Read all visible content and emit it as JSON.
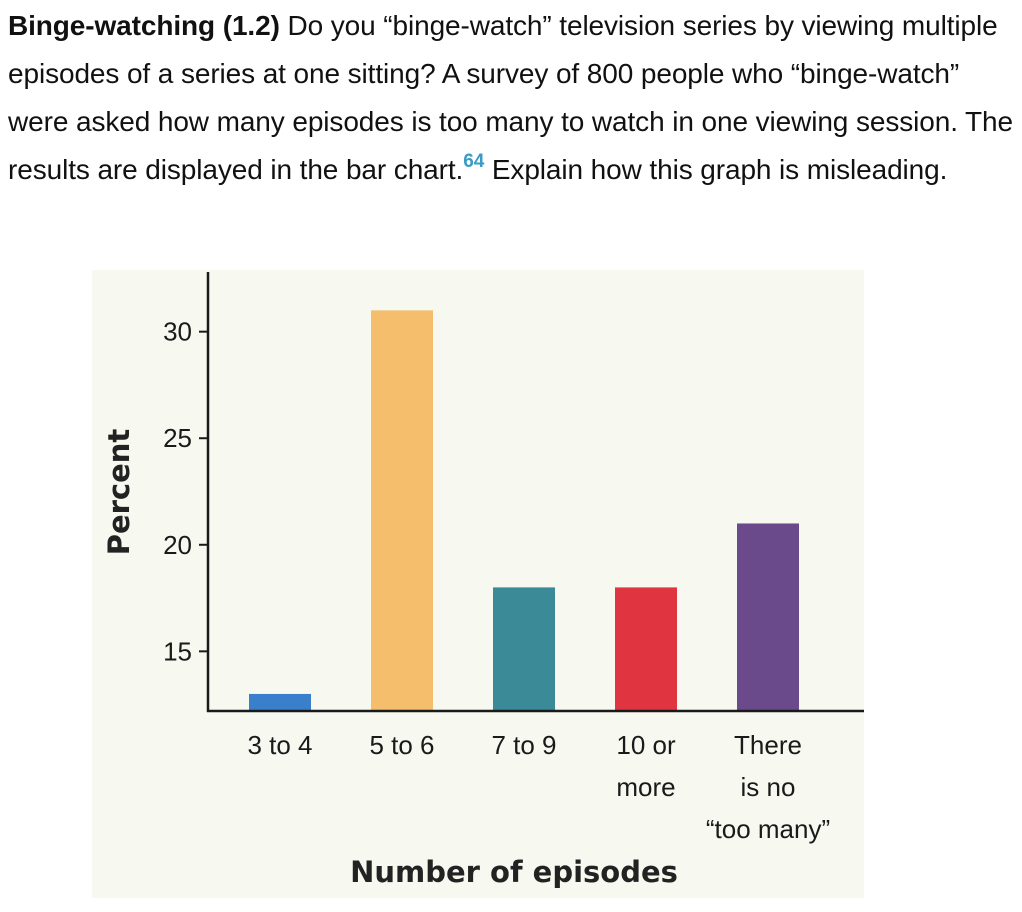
{
  "exercise": {
    "title": "Binge-watching (1.2)",
    "text_before_ref": "Do you “binge-watch” television series by viewing multiple episodes of a series at one sitting? A survey of 800 people who “binge-watch” were asked how many episodes is too many to watch in one viewing session. The results are displayed in the bar chart.",
    "ref": "64",
    "text_after_ref": "Explain how this graph is misleading."
  },
  "chart_data": {
    "type": "bar",
    "categories": [
      [
        "3 to 4"
      ],
      [
        "5 to 6"
      ],
      [
        "7 to 9"
      ],
      [
        "10 or",
        "more"
      ],
      [
        "There",
        "is no",
        "“too many”"
      ]
    ],
    "values": [
      13,
      31,
      18,
      18,
      21
    ],
    "colors": [
      "#3a7fcc",
      "#f4be6c",
      "#3b8a98",
      "#e03541",
      "#6b4a8c"
    ],
    "xlabel": "Number of episodes",
    "ylabel": "Percent",
    "ylim": [
      12.2,
      32.8
    ],
    "yticks": [
      15,
      20,
      25,
      30
    ],
    "grid": false
  }
}
